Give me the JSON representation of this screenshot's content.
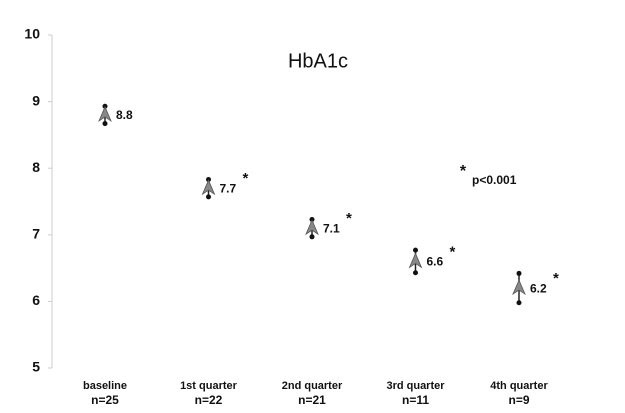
{
  "chart_data": {
    "type": "errorbar",
    "title": "HbA1c",
    "categories": [
      "baseline",
      "1st quarter",
      "2nd quarter",
      "3rd quarter",
      "4th quarter"
    ],
    "n_labels": [
      "n=25",
      "n=22",
      "n=21",
      "n=11",
      "n=9"
    ],
    "values": [
      8.8,
      7.7,
      7.1,
      6.6,
      6.2
    ],
    "errors": [
      0.13,
      0.13,
      0.13,
      0.17,
      0.22
    ],
    "significance": [
      null,
      "*",
      "*",
      "*",
      "*"
    ],
    "annotation_symbol": "*",
    "annotation": "p<0.001",
    "color": "#888888",
    "ylim": [
      5,
      10
    ],
    "yticks": [
      5,
      6,
      7,
      8,
      9,
      10
    ]
  }
}
